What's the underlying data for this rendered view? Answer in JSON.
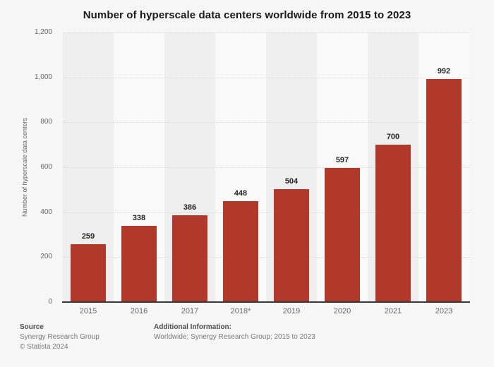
{
  "page": {
    "background": "#f6f6f6"
  },
  "chart_data": {
    "type": "bar",
    "title": "Number of hyperscale data centers worldwide from 2015 to 2023",
    "categories": [
      "2015",
      "2016",
      "2017",
      "2018*",
      "2019",
      "2020",
      "2021",
      "2023"
    ],
    "values": [
      259,
      338,
      386,
      448,
      504,
      597,
      700,
      992
    ],
    "xlabel": "",
    "ylabel": "Number of hyperscale data centers",
    "ylim": [
      0,
      1200
    ],
    "yticks": [
      0,
      200,
      400,
      600,
      800,
      1000,
      1200
    ],
    "ytick_labels": [
      "0",
      "200",
      "400",
      "600",
      "800",
      "1,000",
      "1,200"
    ],
    "grid": true,
    "legend": "none",
    "value_labels_shown": true,
    "bar_color": "#b0392c",
    "band_colors": [
      "#efefef",
      "#f9f9f9"
    ],
    "axis_line_color": "#3a3a3a",
    "gridline_color": "#d9d9d9"
  },
  "footer": {
    "source_label": "Source",
    "source_name": "Synergy Research Group",
    "copyright": "© Statista 2024",
    "additional_info_label": "Additional Information:",
    "additional_info_text": "Worldwide; Synergy Research Group; 2015 to 2023"
  }
}
